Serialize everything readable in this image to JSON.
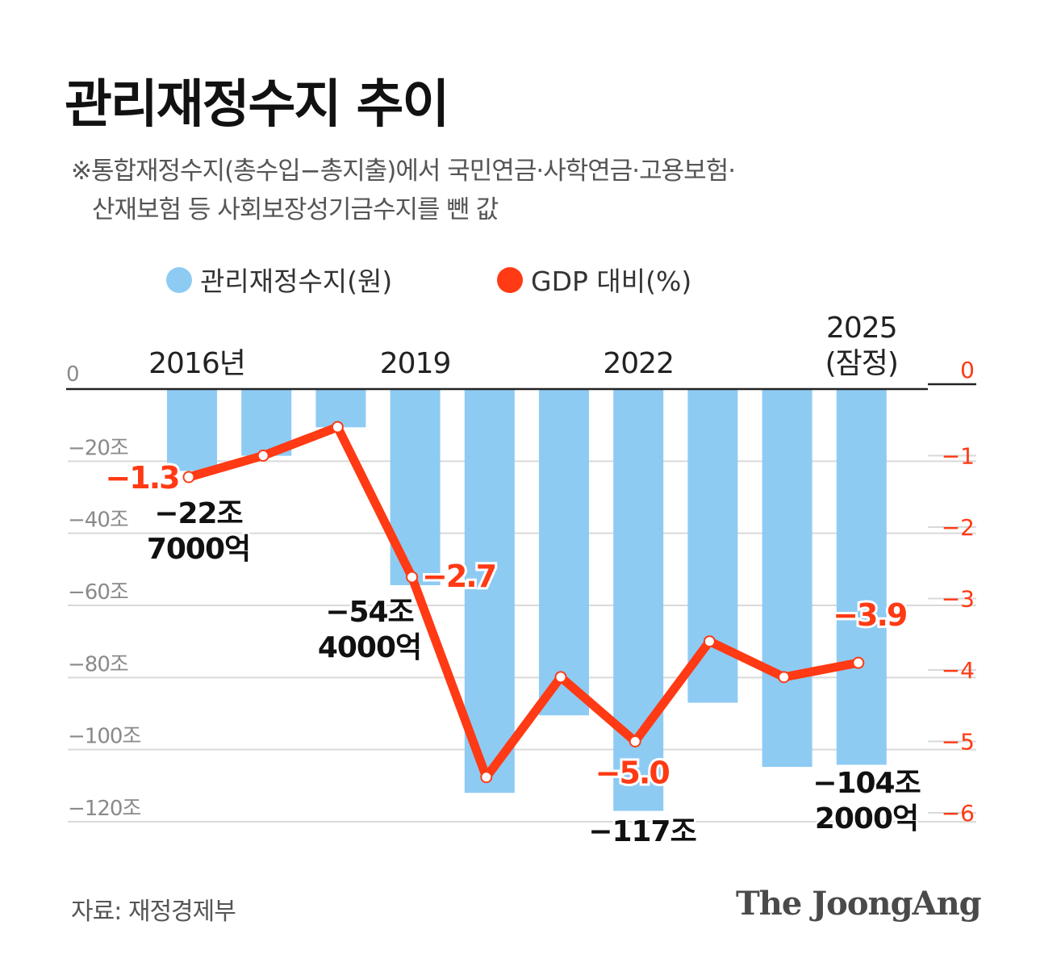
{
  "title": "관리재정수지 추이",
  "note": {
    "line1": "※통합재정수지(총수입−총지출)에서 국민연금·사학연금·고용보험·",
    "line2": "산재보험 등 사회보장성기금수지를 뺀 값"
  },
  "legend": {
    "bar_label": "관리재정수지(원)",
    "line_label": "GDP 대비(%)"
  },
  "colors": {
    "bar": "#8ECBF3",
    "line": "#FF3A14",
    "axis": "#222222",
    "grid": "#D9D9D9",
    "tick_left": "#8A8A8A",
    "tick_right": "#FF3A14"
  },
  "chart_data": {
    "type": "bar+line",
    "categories": [
      "2016",
      "2017",
      "2018",
      "2019",
      "2020",
      "2021",
      "2022",
      "2023",
      "2024",
      "2025"
    ],
    "category_labels": [
      {
        "index": 0,
        "lines": [
          "2016년"
        ]
      },
      {
        "index": 3,
        "lines": [
          "2019"
        ]
      },
      {
        "index": 6,
        "lines": [
          "2022"
        ]
      },
      {
        "index": 9,
        "lines": [
          "2025",
          "(잠정)"
        ]
      }
    ],
    "series": [
      {
        "name": "관리재정수지(원)",
        "type": "bar",
        "axis": "left",
        "unit": "조원",
        "values": [
          -22.7,
          -18.5,
          -10.6,
          -54.4,
          -112.0,
          -90.5,
          -117.0,
          -87.0,
          -104.8,
          -104.2
        ]
      },
      {
        "name": "GDP 대비(%)",
        "type": "line",
        "axis": "right",
        "unit": "%",
        "values": [
          -1.3,
          -1.0,
          -0.6,
          -2.7,
          -5.5,
          -4.1,
          -5.0,
          -3.6,
          -4.1,
          -3.9
        ]
      }
    ],
    "left_axis": {
      "range": [
        -120,
        0
      ],
      "ticks": [
        0,
        -20,
        -40,
        -60,
        -80,
        -100,
        -120
      ],
      "tick_labels": [
        "0",
        "−20조",
        "−40조",
        "−60조",
        "−80조",
        "−100조",
        "−120조"
      ]
    },
    "right_axis": {
      "range": [
        -6,
        0
      ],
      "ticks": [
        0,
        -1,
        -2,
        -3,
        -4,
        -5,
        -6
      ],
      "tick_labels": [
        "0",
        "−1",
        "−2",
        "−3",
        "−4",
        "−5",
        "−6"
      ]
    },
    "bar_annotations": [
      {
        "index": 0,
        "lines": [
          "−22조",
          "7000억"
        ]
      },
      {
        "index": 3,
        "lines": [
          "−54조",
          "4000억"
        ]
      },
      {
        "index": 6,
        "lines": [
          "−117조"
        ]
      },
      {
        "index": 9,
        "lines": [
          "−104조",
          "2000억"
        ]
      }
    ],
    "line_annotations": [
      {
        "index": 0,
        "text": "−1.3"
      },
      {
        "index": 3,
        "text": "−2.7"
      },
      {
        "index": 6,
        "text": "−5.0"
      },
      {
        "index": 9,
        "text": "−3.9"
      }
    ]
  },
  "source": "자료: 재정경제부",
  "brand": "The JoongAng"
}
